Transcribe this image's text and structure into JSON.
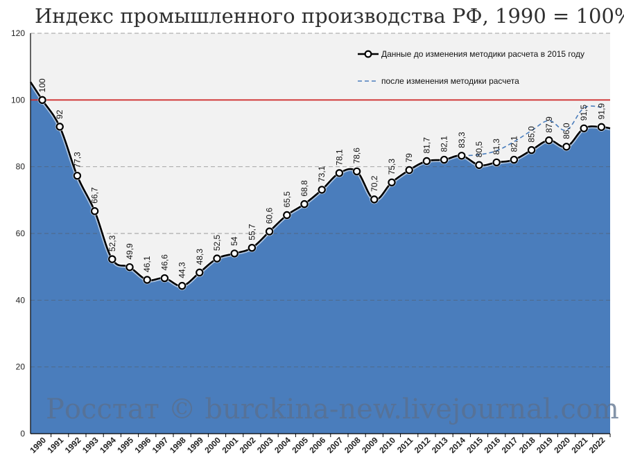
{
  "chart_data": {
    "type": "area",
    "title": "Индекс промышленного производства РФ,  1990 = 100%",
    "watermark": "Росстат © burckina-new.livejournal.com",
    "ylim": [
      0,
      120
    ],
    "yticks": [
      "0",
      "20",
      "40",
      "60",
      "80",
      "100",
      "120"
    ],
    "reference_line": {
      "y": 100,
      "color": "#d03030"
    },
    "grid": true,
    "legend_position": "top-right",
    "colors": {
      "area": "#4a7dbc",
      "plot_bg": "#f2f2f2",
      "line": "#000000",
      "dashed": "#4a7dbc"
    },
    "x": [
      "1990",
      "1991",
      "1992",
      "1993",
      "1994",
      "1995",
      "1996",
      "1997",
      "1998",
      "1999",
      "2000",
      "2001",
      "2002",
      "2003",
      "2004",
      "2005",
      "2006",
      "2007",
      "2008",
      "2009",
      "2010",
      "2011",
      "2012",
      "2013",
      "2014",
      "2015",
      "2016",
      "2017",
      "2018",
      "2019",
      "2020",
      "2021",
      "2022"
    ],
    "series": [
      {
        "name": "Данные до изменения методики расчета в 2015 году",
        "style": "solid-markers",
        "values": [
          100,
          92,
          77.3,
          66.7,
          52.3,
          49.9,
          46.1,
          46.6,
          44.3,
          48.3,
          52.5,
          54,
          55.7,
          60.6,
          65.5,
          68.8,
          73.1,
          78.1,
          78.6,
          70.2,
          75.3,
          79,
          81.7,
          82.1,
          83.3,
          80.5,
          81.3,
          82.1,
          85.0,
          87.9,
          86.0,
          91.5,
          91.9
        ],
        "labels": [
          "100",
          "92",
          "77,3",
          "66,7",
          "52,3",
          "49,9",
          "46,1",
          "46,6",
          "44,3",
          "48,3",
          "52,5",
          "54",
          "55,7",
          "60,6",
          "65,5",
          "68,8",
          "73,1",
          "78,1",
          "78,6",
          "70,2",
          "75,3",
          "79",
          "81,7",
          "82,1",
          "83,3",
          "80,5",
          "81,3",
          "82,1",
          "85,0",
          "87,9",
          "86,0",
          "91,5",
          "91,9"
        ]
      },
      {
        "name": "после изменения методики расчета",
        "style": "dashed",
        "x": [
          "2014",
          "2015",
          "2016",
          "2017",
          "2018",
          "2019",
          "2020",
          "2021",
          "2022"
        ],
        "values": [
          83.3,
          83.6,
          84.8,
          87.5,
          90.8,
          93.8,
          91.0,
          97.6,
          97.8
        ]
      }
    ]
  }
}
